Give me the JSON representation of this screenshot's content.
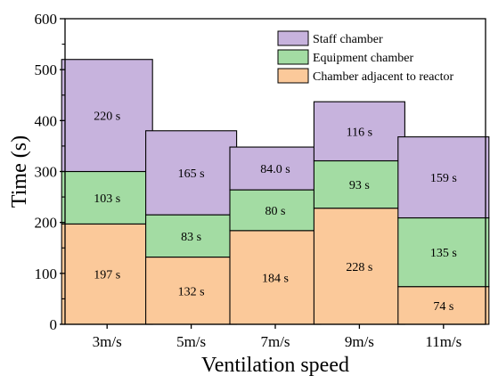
{
  "chart_data": {
    "type": "bar",
    "stacked": true,
    "xlabel": "Ventilation speed",
    "ylabel": "Time (s)",
    "ylim": [
      0,
      600
    ],
    "yticks": [
      0,
      100,
      200,
      300,
      400,
      500,
      600
    ],
    "ytick_labels": [
      "0",
      "100",
      "200",
      "300",
      "400",
      "500",
      "600"
    ],
    "categories": [
      "3m/s",
      "5m/s",
      "7m/s",
      "9m/s",
      "11m/s"
    ],
    "legend_position": "top-right",
    "grid": false,
    "series": [
      {
        "name": "Chamber adjacent to reactor",
        "color": "#fbc99a",
        "values": [
          197,
          132,
          184,
          228,
          74
        ],
        "labels": [
          "197 s",
          "132 s",
          "184 s",
          "228 s",
          "74 s"
        ]
      },
      {
        "name": "Equipment chamber",
        "color": "#a3dca3",
        "values": [
          103,
          83,
          80,
          93,
          135
        ],
        "labels": [
          "103 s",
          "83 s",
          "80 s",
          "93 s",
          "135 s"
        ]
      },
      {
        "name": "Staff chamber",
        "color": "#c7b3dd",
        "values": [
          220,
          165,
          84.0,
          116,
          159
        ],
        "labels": [
          "220 s",
          "165 s",
          "84.0 s",
          "116 s",
          "159 s"
        ]
      }
    ],
    "legend_order": [
      "Staff chamber",
      "Equipment chamber",
      "Chamber adjacent to reactor"
    ]
  }
}
